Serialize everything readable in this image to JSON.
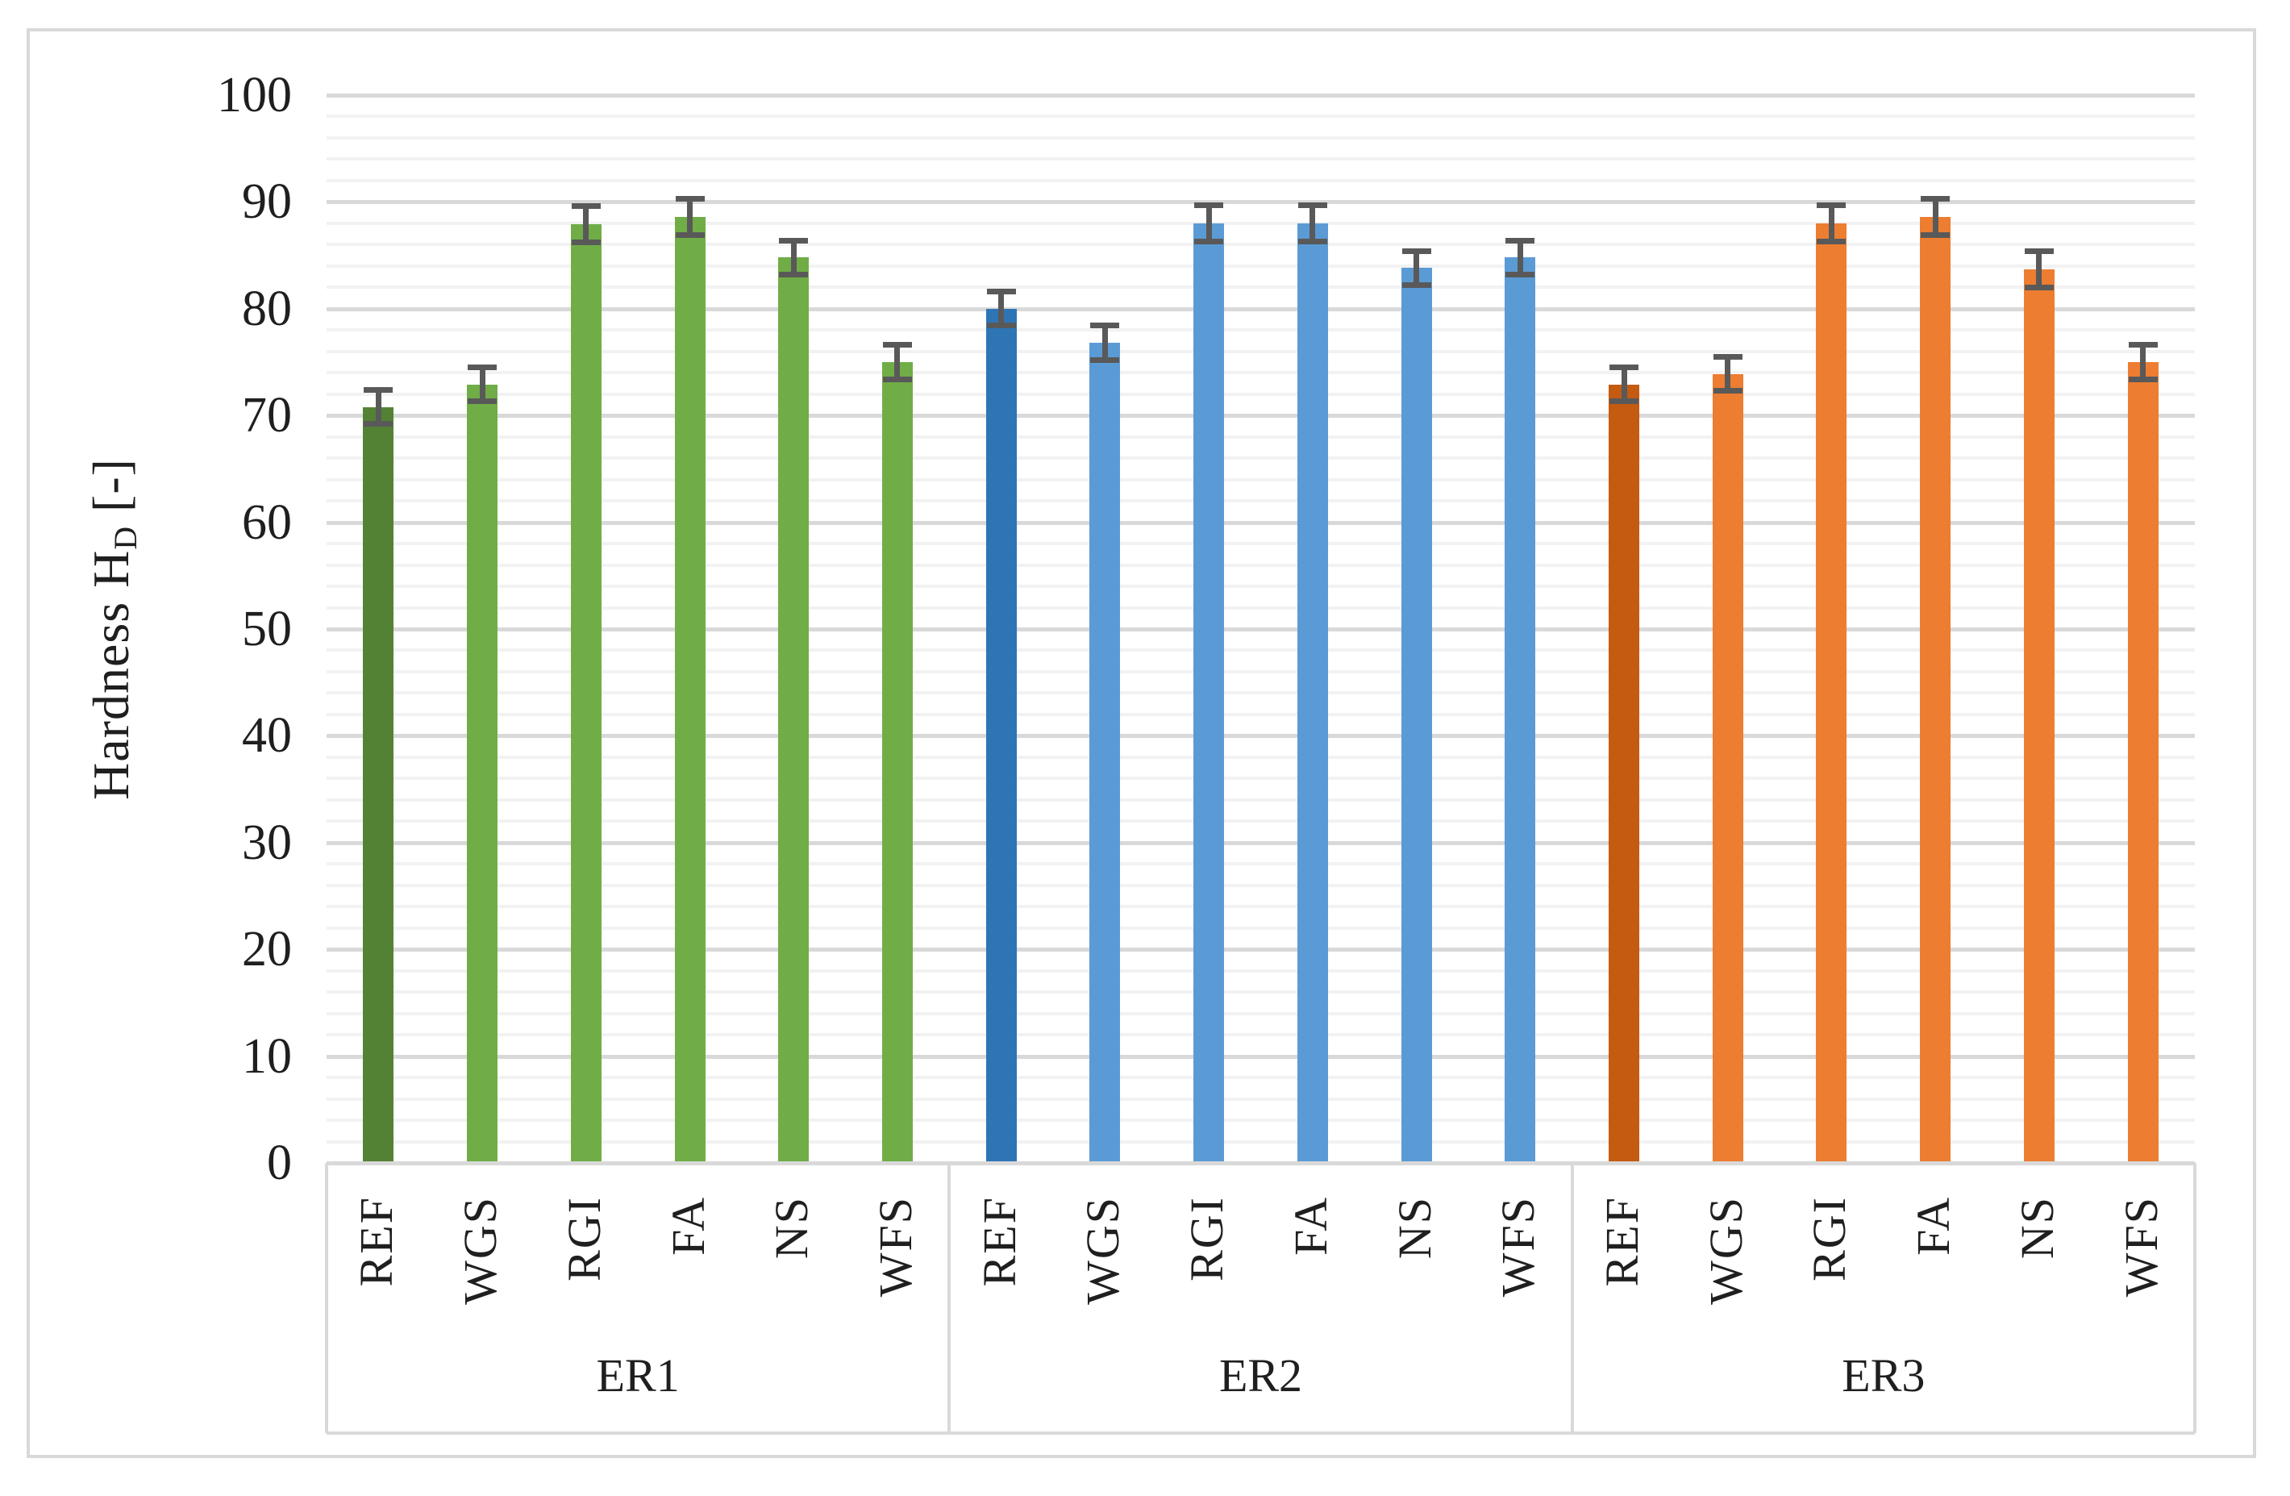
{
  "chart_data": {
    "type": "bar",
    "title": "",
    "ylabel": {
      "text": "Hardness H",
      "subscript": "D",
      "suffix": " [-]"
    },
    "xlabel": "",
    "ylim": [
      0,
      100
    ],
    "ytick_step": 10,
    "minor_grid_step": 2,
    "yticks": [
      "0",
      "10",
      "20",
      "30",
      "40",
      "50",
      "60",
      "70",
      "80",
      "90",
      "100"
    ],
    "categories": [
      "REF",
      "WGS",
      "RGI",
      "FA",
      "NS",
      "WFS"
    ],
    "groups": [
      "ER1",
      "ER2",
      "ER3"
    ],
    "series": [
      {
        "group": "ER1",
        "values": [
          70.8,
          72.9,
          87.9,
          88.6,
          84.8,
          75.0
        ],
        "errors": [
          1.6,
          1.6,
          1.7,
          1.7,
          1.6,
          1.6
        ],
        "bar_color": "#70AD47",
        "ref_bar_color": "#548235"
      },
      {
        "group": "ER2",
        "values": [
          80.0,
          76.8,
          88.0,
          88.0,
          83.8,
          84.8
        ],
        "errors": [
          1.6,
          1.6,
          1.7,
          1.7,
          1.6,
          1.6
        ],
        "bar_color": "#5B9BD5",
        "ref_bar_color": "#2E75B6"
      },
      {
        "group": "ER3",
        "values": [
          72.9,
          73.9,
          88.0,
          88.6,
          83.7,
          75.0
        ],
        "errors": [
          1.6,
          1.6,
          1.7,
          1.7,
          1.7,
          1.6
        ],
        "bar_color": "#ED7D31",
        "ref_bar_color": "#C55A11"
      }
    ],
    "colors": {
      "error_bar": "#595959",
      "grid_major": "#D9D9D9",
      "grid_minor": "#F2F2F2",
      "axis_line": "#D9D9D9",
      "frame_border": "#D9D9D9",
      "axis_text": "#1F1F1F",
      "background": "#FFFFFF"
    },
    "legend": "none",
    "grid": "major-and-minor-horizontal"
  }
}
